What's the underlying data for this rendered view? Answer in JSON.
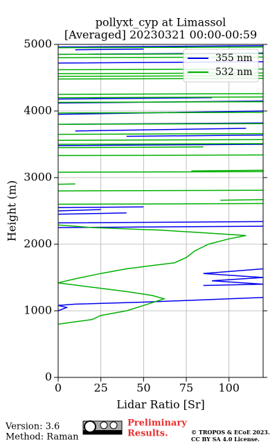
{
  "chart_data": {
    "type": "line",
    "title": "pollyxt_cyp at Limassol",
    "subtitle": "[Averaged] 20230321 00:00-00:59",
    "x_label": "Lidar Ratio [Sr]",
    "y_label": "Height (m)",
    "xlim": [
      0,
      120
    ],
    "ylim": [
      0,
      5000
    ],
    "xticks": [
      0,
      25,
      50,
      75,
      100
    ],
    "yticks": [
      0,
      1000,
      2000,
      3000,
      4000,
      5000
    ],
    "grid": true,
    "legend": "upper right",
    "series": [
      {
        "name": "355 nm",
        "color": "#0000ee",
        "x": [
          0,
          5,
          0,
          10,
          50,
          120,
          null,
          85,
          120,
          90,
          120,
          85,
          120,
          null,
          0,
          120,
          null,
          0,
          120,
          null,
          0,
          40,
          null,
          0,
          25,
          null,
          0,
          50,
          null,
          0,
          120,
          null,
          40,
          120,
          null,
          10,
          110,
          null,
          0,
          120,
          null,
          0,
          120,
          null,
          0,
          120,
          null,
          0,
          90,
          null,
          0,
          120,
          null,
          0,
          120,
          null,
          10,
          50,
          null,
          0,
          120
        ],
        "y": [
          1000,
          1050,
          1080,
          1100,
          1130,
          1200,
          null,
          1380,
          1400,
          1450,
          1500,
          1560,
          1630,
          null,
          2250,
          2270,
          null,
          2320,
          2340,
          null,
          2450,
          2470,
          null,
          2500,
          2520,
          null,
          2550,
          2560,
          null,
          3480,
          3500,
          null,
          3620,
          3640,
          null,
          3700,
          3740,
          null,
          3800,
          3820,
          null,
          3950,
          4000,
          null,
          4120,
          4150,
          null,
          4180,
          4200,
          null,
          4720,
          4740,
          null,
          4850,
          4870,
          null,
          4920,
          4930,
          null,
          4960,
          4980
        ]
      },
      {
        "name": "532 nm",
        "color": "#00b000",
        "x": [
          0,
          20,
          25,
          40,
          50,
          62,
          55,
          40,
          15,
          0,
          10,
          25,
          40,
          55,
          68,
          75,
          80,
          88,
          100,
          110,
          80,
          60,
          20,
          0,
          null,
          0,
          120,
          null,
          95,
          120,
          null,
          0,
          120,
          null,
          0,
          10,
          null,
          0,
          120,
          null,
          78,
          120,
          null,
          0,
          120,
          null,
          0,
          85,
          null,
          0,
          120,
          null,
          0,
          120,
          null,
          0,
          120,
          null,
          0,
          120,
          null,
          0,
          120,
          null,
          0,
          120,
          null,
          0,
          120,
          null,
          0,
          120,
          null,
          0,
          120,
          null,
          0,
          120,
          null,
          0,
          120,
          null,
          0,
          120,
          null,
          0,
          120,
          null,
          0,
          120,
          null,
          0,
          120
        ],
        "y": [
          800,
          870,
          930,
          1000,
          1080,
          1180,
          1230,
          1290,
          1370,
          1420,
          1480,
          1560,
          1630,
          1680,
          1720,
          1800,
          1900,
          2000,
          2080,
          2130,
          2180,
          2210,
          2250,
          2290,
          null,
          2600,
          2610,
          null,
          2660,
          2670,
          null,
          2800,
          2810,
          null,
          2900,
          2905,
          null,
          3080,
          3090,
          null,
          3100,
          3110,
          null,
          3330,
          3340,
          null,
          3450,
          3460,
          null,
          3500,
          3510,
          null,
          3560,
          3570,
          null,
          3650,
          3660,
          null,
          3800,
          3810,
          null,
          3970,
          3980,
          null,
          4130,
          4140,
          null,
          4200,
          4210,
          null,
          4250,
          4260,
          null,
          4480,
          4490,
          null,
          4520,
          4530,
          null,
          4560,
          4570,
          null,
          4620,
          4630,
          null,
          4800,
          4810,
          null,
          4850,
          4860,
          null,
          4950,
          4960
        ]
      }
    ]
  },
  "footer": {
    "version": "Version: 3.6",
    "method": "Method: Raman",
    "status_line1": "Preliminary",
    "status_line2": "Results.",
    "copyright": "© TROPOS & ECoE 2023.",
    "license": "CC BY SA 4.0 License."
  }
}
